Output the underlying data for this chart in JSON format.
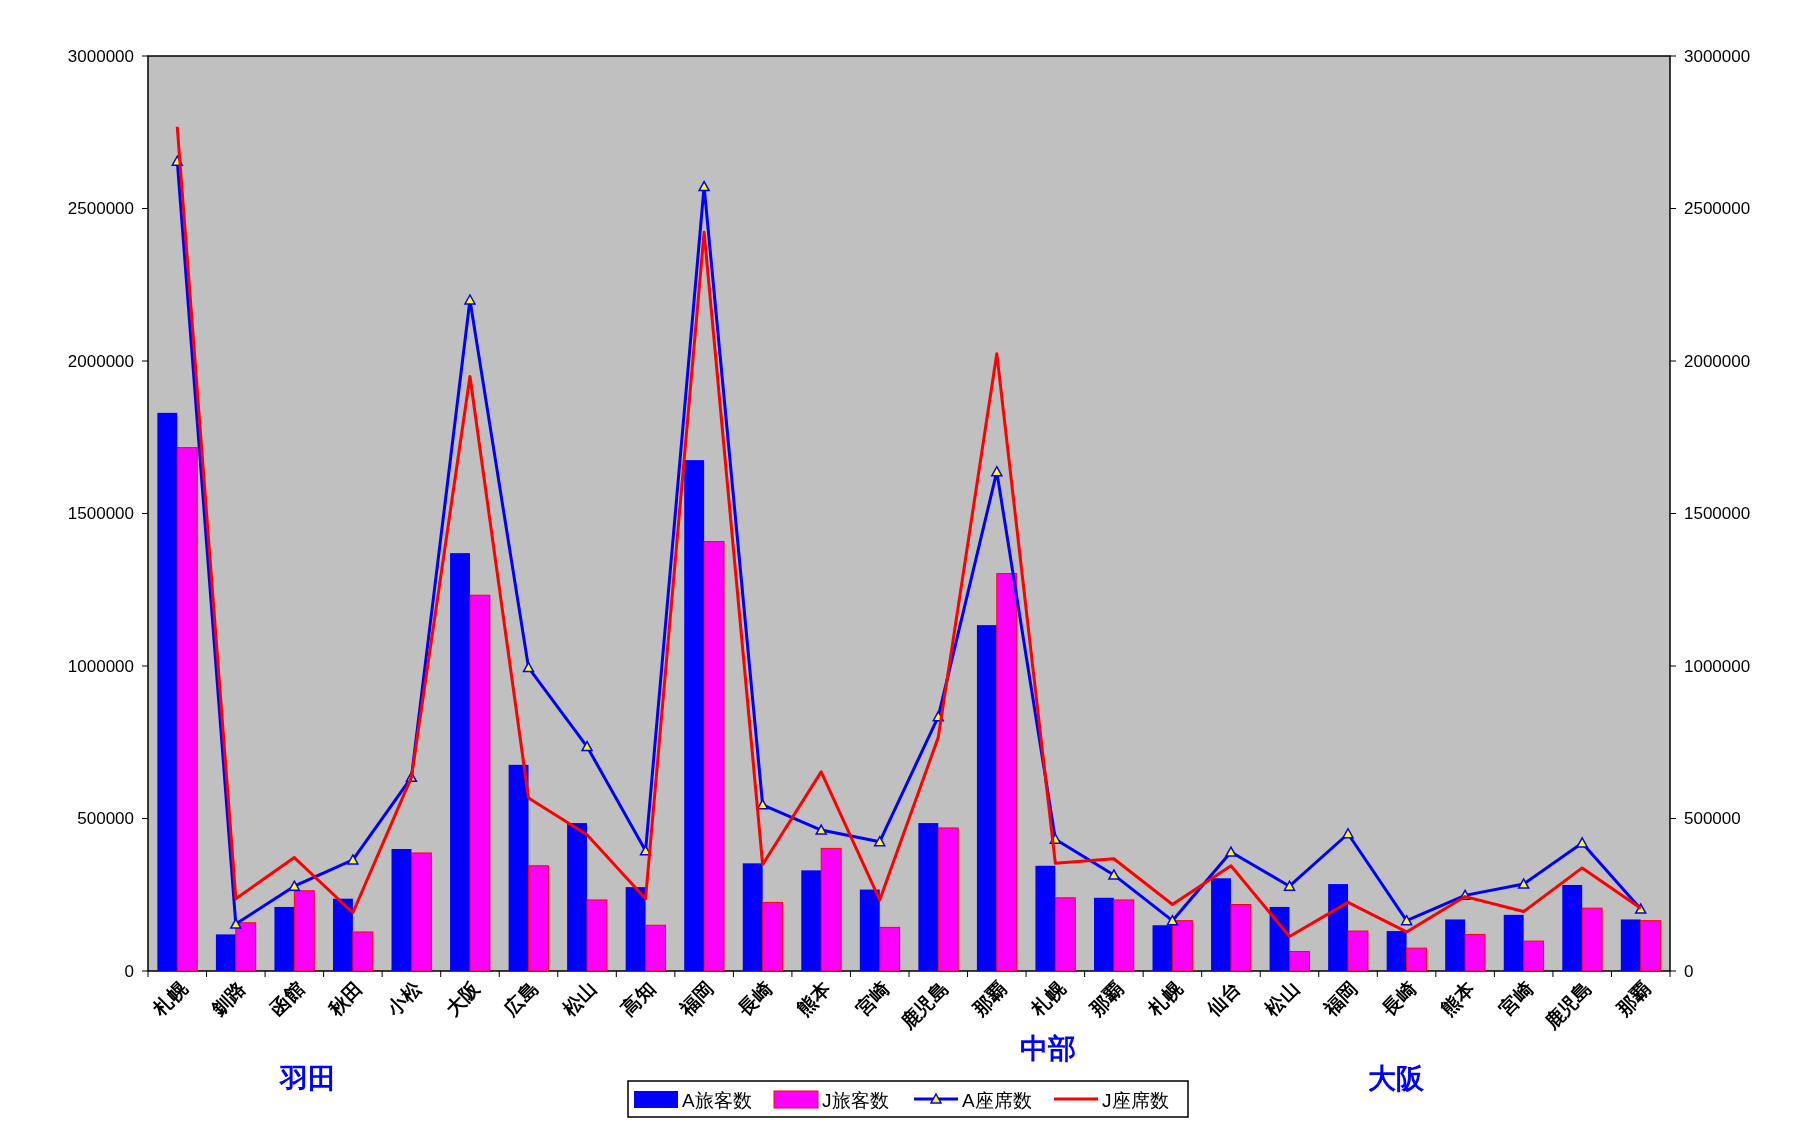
{
  "chart_data": {
    "type": "bar",
    "categories": [
      "札幌",
      "釧路",
      "函館",
      "秋田",
      "小松",
      "大阪",
      "広島",
      "松山",
      "高知",
      "福岡",
      "長崎",
      "熊本",
      "宮崎",
      "鹿児島",
      "那覇",
      "札幌",
      "那覇",
      "札幌",
      "仙台",
      "松山",
      "福岡",
      "長崎",
      "熊本",
      "宮崎",
      "鹿児島",
      "那覇"
    ],
    "series": [
      {
        "name": "A旅客数",
        "color": "#0000ff",
        "values": [
          1830000,
          120000,
          210000,
          237000,
          400000,
          1370000,
          676000,
          485000,
          275000,
          1675000,
          353000,
          330000,
          267000,
          485000,
          1134000,
          345000,
          240000,
          150000,
          304000,
          210000,
          285000,
          131000,
          169000,
          184000,
          282000,
          169000
        ]
      },
      {
        "name": "J旅客数",
        "color": "#ff00ff",
        "values": [
          1716000,
          158000,
          263000,
          128000,
          387000,
          1232000,
          345000,
          233000,
          150000,
          1408000,
          225000,
          402000,
          143000,
          469000,
          1303000,
          240000,
          233000,
          165000,
          218000,
          64000,
          131000,
          75000,
          120000,
          98000,
          206000,
          165000
        ]
      },
      {
        "name": "A座席数",
        "type": "line",
        "color": "#0000ff",
        "marker": "triangle",
        "values": [
          2655000,
          154000,
          278000,
          364000,
          635000,
          2200000,
          995000,
          736000,
          394000,
          2572000,
          545000,
          462000,
          424000,
          834000,
          1637000,
          432000,
          315000,
          165000,
          390000,
          278000,
          450000,
          165000,
          248000,
          285000,
          420000,
          203000
        ]
      },
      {
        "name": "J座席数",
        "type": "line",
        "color": "#ff0000",
        "marker": "none",
        "values": [
          2768000,
          237000,
          372000,
          191000,
          635000,
          1949000,
          567000,
          447000,
          237000,
          2422000,
          349000,
          653000,
          233000,
          766000,
          2024000,
          353000,
          368000,
          218000,
          345000,
          113000,
          225000,
          128000,
          244000,
          195000,
          338000,
          206000
        ]
      }
    ],
    "ylim": [
      0,
      3000000
    ],
    "yticks": [
      0,
      500000,
      1000000,
      1500000,
      2000000,
      2500000,
      3000000
    ],
    "y2lim": [
      0,
      3000000
    ],
    "y2ticks": [
      0,
      500000,
      1000000,
      1500000,
      2000000,
      2500000,
      3000000
    ],
    "grid": false,
    "legend": "bottom",
    "annotations": [
      "羽田",
      "中部",
      "大阪"
    ]
  }
}
